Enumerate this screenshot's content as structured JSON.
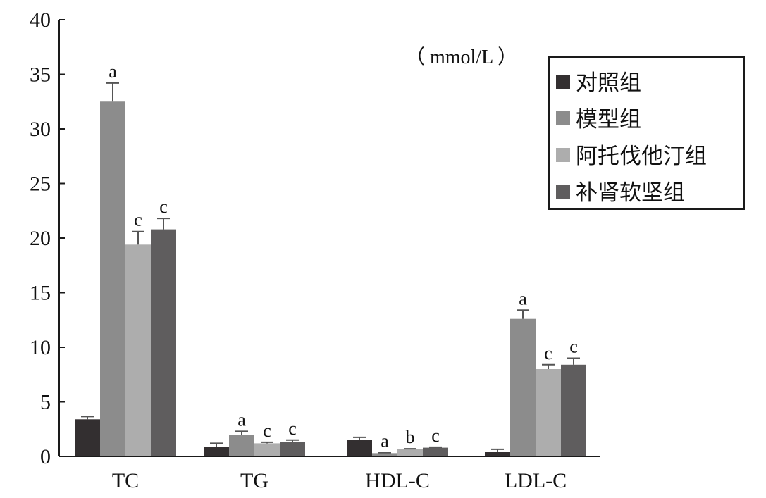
{
  "chart_data": {
    "type": "bar",
    "unit_label": "（ mmol/L ）",
    "ylim": [
      0,
      40
    ],
    "yticks": [
      0,
      5,
      10,
      15,
      20,
      25,
      30,
      35,
      40
    ],
    "categories": [
      "TC",
      "TG",
      "HDL-C",
      "LDL-C"
    ],
    "legend_position": "top-right",
    "series": [
      {
        "name": "对照组",
        "color": "#332f30",
        "values": [
          3.4,
          0.9,
          1.5,
          0.4
        ],
        "errors": [
          0.25,
          0.3,
          0.25,
          0.25
        ],
        "sig": [
          "",
          "",
          "",
          ""
        ]
      },
      {
        "name": "模型组",
        "color": "#8c8c8c",
        "values": [
          32.5,
          2.0,
          0.3,
          12.6
        ],
        "errors": [
          1.7,
          0.3,
          0.05,
          0.8
        ],
        "sig": [
          "a",
          "a",
          "a",
          "a"
        ]
      },
      {
        "name": "阿托伐他汀组",
        "color": "#adadad",
        "values": [
          19.4,
          1.2,
          0.65,
          8.0
        ],
        "errors": [
          1.2,
          0.1,
          0.05,
          0.4
        ],
        "sig": [
          "c",
          "c",
          "b",
          "c"
        ]
      },
      {
        "name": "补肾软坚组",
        "color": "#5f5d5e",
        "values": [
          20.8,
          1.35,
          0.8,
          8.4
        ],
        "errors": [
          1.0,
          0.15,
          0.05,
          0.6
        ],
        "sig": [
          "c",
          "c",
          "c",
          "c"
        ]
      }
    ]
  }
}
